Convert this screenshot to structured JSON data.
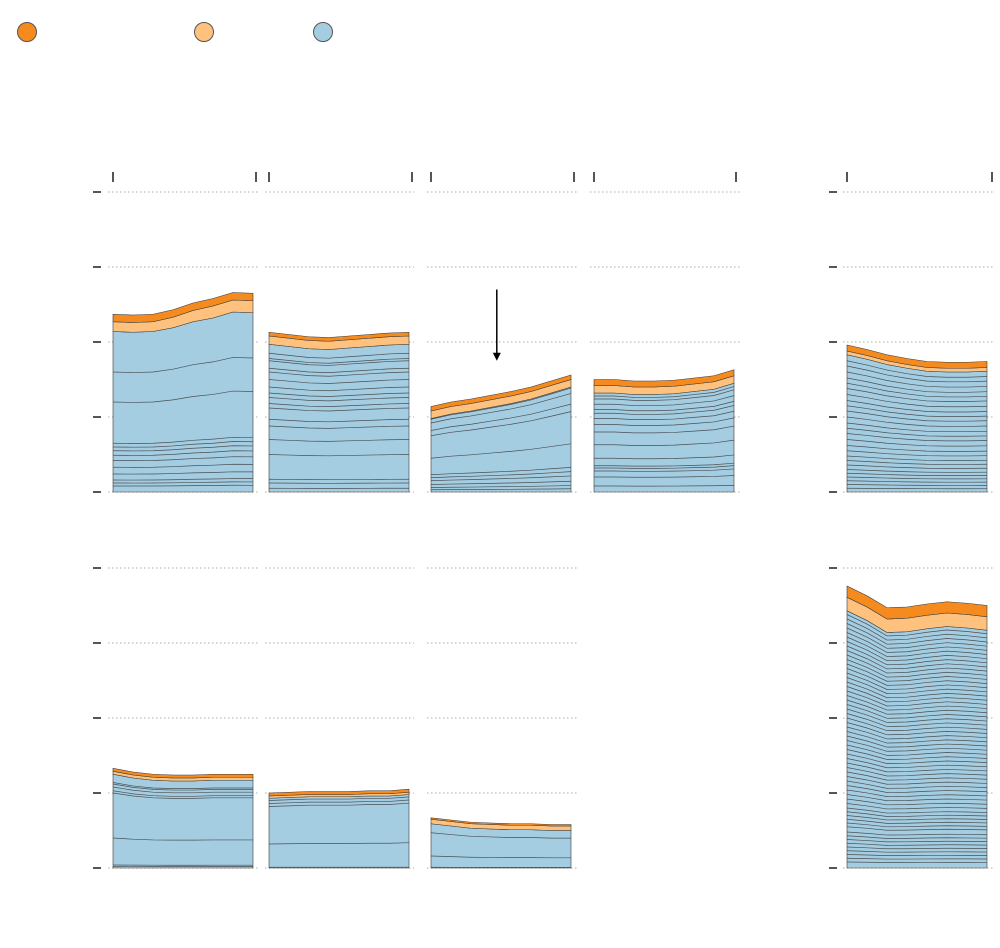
{
  "legend": {
    "items": [
      {
        "label": "",
        "color": "#f58a1f"
      },
      {
        "label": "",
        "color": "#fec27e"
      },
      {
        "label": "",
        "color": "#a5cde2"
      }
    ]
  },
  "colors": {
    "dark": "#f58a1f",
    "light": "#fec27e",
    "blue": "#a5cde2",
    "stroke": "#3a3a3a",
    "grid": "#c8c8c8",
    "axis": "#555555"
  },
  "annotations": [
    {
      "type": "arrow-down",
      "panel": 2,
      "x": 0.47,
      "y_from": 270,
      "y_to": 175
    }
  ],
  "chart_data": {
    "type": "area",
    "stacked": true,
    "ylim": [
      0,
      400
    ],
    "gridlines": [
      0,
      100,
      200,
      300,
      400
    ],
    "panels": [
      {
        "row": 0,
        "col": 0,
        "x": [
          0,
          1,
          2,
          3,
          4,
          5,
          6,
          7
        ],
        "top": [
          237,
          236,
          237,
          243,
          252,
          258,
          266,
          265
        ],
        "orange_band": [
          10,
          10,
          10,
          10,
          10,
          10,
          10,
          10
        ],
        "light_band": [
          13,
          13,
          13,
          14,
          15,
          16,
          16,
          16
        ],
        "blue_lines": [
          8,
          12,
          16,
          24,
          33,
          42,
          49,
          55,
          60,
          65,
          120,
          160
        ]
      },
      {
        "row": 0,
        "col": 1,
        "x": [
          0,
          1,
          2,
          3,
          4,
          5,
          6,
          7
        ],
        "top": [
          213,
          210,
          207,
          206,
          208,
          210,
          212,
          213
        ],
        "orange_band": [
          5,
          5,
          5,
          5,
          5,
          5,
          5,
          5
        ],
        "light_band": [
          11,
          11,
          11,
          11,
          11,
          11,
          11,
          11
        ],
        "blue_lines": [
          5,
          12,
          17,
          50,
          70,
          88,
          97,
          112,
          118,
          126,
          132,
          140,
          150,
          160,
          165,
          175,
          178,
          185
        ]
      },
      {
        "row": 0,
        "col": 2,
        "x": [
          0,
          1,
          2,
          3,
          4,
          5,
          6,
          7
        ],
        "top": [
          114,
          120,
          124,
          129,
          134,
          140,
          148,
          156
        ],
        "orange_band": [
          6,
          6,
          6,
          6,
          6,
          6,
          6,
          6
        ],
        "light_band": [
          10,
          10,
          10,
          10,
          10,
          10,
          10,
          10
        ],
        "blue_lines": [
          3,
          6,
          10,
          15,
          19,
          23,
          45,
          75,
          82,
          92,
          97
        ]
      },
      {
        "row": 0,
        "col": 3,
        "x": [
          0,
          1,
          2,
          3,
          4,
          5,
          6,
          7
        ],
        "top": [
          150,
          150,
          148,
          148,
          149,
          152,
          155,
          163
        ],
        "orange_band": [
          8,
          8,
          8,
          8,
          8,
          8,
          8,
          8
        ],
        "light_band": [
          10,
          10,
          10,
          10,
          10,
          10,
          10,
          10
        ],
        "blue_lines": [
          8,
          20,
          28,
          32,
          35,
          45,
          63,
          80,
          90,
          98,
          105,
          110,
          117,
          124,
          128
        ]
      },
      {
        "row": 0,
        "col": 4,
        "x": [
          0,
          1,
          2,
          3,
          4,
          5,
          6,
          7
        ],
        "top": [
          196,
          190,
          183,
          178,
          174,
          173,
          173,
          174
        ],
        "orange_band": [
          8,
          8,
          8,
          8,
          8,
          8,
          8,
          8
        ],
        "light_band": [
          5,
          5,
          5,
          5,
          5,
          5,
          5,
          5
        ],
        "blue_lines": [
          5,
          10,
          15,
          20,
          25,
          30,
          36,
          42,
          48,
          55,
          62,
          70,
          78,
          85,
          92,
          100,
          108,
          115,
          122,
          130,
          138,
          145,
          152,
          160,
          168,
          175
        ]
      },
      {
        "row": 1,
        "col": 0,
        "x": [
          0,
          1,
          2,
          3,
          4,
          5,
          6,
          7
        ],
        "top": [
          133,
          128,
          125,
          124,
          124,
          125,
          125,
          125
        ],
        "orange_band": [
          4,
          4,
          4,
          4,
          4,
          4,
          4,
          4
        ],
        "light_band": [
          4,
          4,
          4,
          4,
          4,
          4,
          4,
          4
        ],
        "blue_lines": [
          2,
          4,
          40,
          100,
          103,
          108,
          112,
          114
        ]
      },
      {
        "row": 1,
        "col": 1,
        "x": [
          0,
          1,
          2,
          3,
          4,
          5,
          6,
          7
        ],
        "top": [
          100,
          101,
          102,
          102,
          102,
          103,
          103,
          105
        ],
        "orange_band": [
          4,
          4,
          4,
          4,
          4,
          4,
          4,
          4
        ],
        "light_band": [
          3,
          3,
          3,
          3,
          3,
          3,
          3,
          3
        ],
        "blue_lines": [
          1,
          32,
          82,
          86,
          90
        ]
      },
      {
        "row": 1,
        "col": 2,
        "x": [
          0,
          1,
          2,
          3,
          4,
          5,
          6,
          7
        ],
        "top": [
          67,
          64,
          61,
          60,
          59,
          59,
          58,
          58
        ],
        "orange_band": [
          2,
          2,
          2,
          2,
          2,
          2,
          2,
          2
        ],
        "light_band": [
          6,
          6,
          6,
          6,
          6,
          6,
          6,
          6
        ],
        "blue_lines": [
          1,
          16,
          47
        ]
      },
      {
        "row": 1,
        "col": 4,
        "x": [
          0,
          1,
          2,
          3,
          4,
          5,
          6,
          7
        ],
        "top": [
          376,
          363,
          347,
          348,
          352,
          355,
          353,
          350
        ],
        "orange_band": [
          15,
          15,
          15,
          15,
          15,
          15,
          15,
          15
        ],
        "light_band": [
          18,
          18,
          18,
          18,
          18,
          18,
          18,
          18
        ],
        "blue_lines": [
          8,
          13,
          18,
          23,
          28,
          33,
          38,
          43,
          48,
          55,
          60,
          65,
          70,
          75,
          80,
          86,
          92,
          98,
          104,
          110,
          116,
          122,
          128,
          134,
          140,
          146,
          152,
          158,
          164,
          170,
          176,
          182,
          188,
          194,
          200,
          206,
          212,
          218,
          224,
          230,
          236,
          242,
          248,
          254,
          260,
          266,
          272,
          278,
          284,
          290,
          296,
          302,
          308,
          314,
          320,
          326,
          332,
          338,
          344
        ]
      }
    ]
  }
}
